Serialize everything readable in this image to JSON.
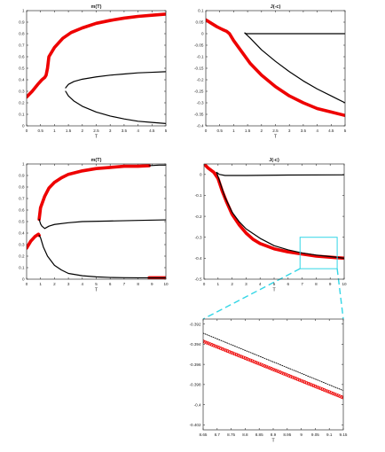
{
  "chart_data": [
    {
      "type": "line",
      "title": "m(T)",
      "xlabel": "T",
      "ylabel": "",
      "xlim": [
        0,
        5
      ],
      "ylim": [
        0,
        1
      ],
      "xticks": [
        "0",
        "0.5",
        "1",
        "1.5",
        "2",
        "2.5",
        "3",
        "3.5",
        "4",
        "4.5",
        "5"
      ],
      "yticks": [
        "0",
        "0.1",
        "0.2",
        "0.3",
        "0.4",
        "0.5",
        "0.6",
        "0.7",
        "0.8",
        "0.9",
        "1"
      ],
      "series": [
        {
          "color": "#ee0000",
          "style": "thick",
          "points": [
            [
              0,
              0.25
            ],
            [
              0.2,
              0.3
            ],
            [
              0.4,
              0.36
            ],
            [
              0.55,
              0.4
            ],
            [
              0.65,
              0.42
            ],
            [
              0.7,
              0.44
            ],
            [
              0.75,
              0.5
            ],
            [
              0.8,
              0.6
            ],
            [
              1.0,
              0.68
            ],
            [
              1.3,
              0.76
            ],
            [
              1.6,
              0.81
            ],
            [
              2.0,
              0.85
            ],
            [
              2.5,
              0.89
            ],
            [
              3.0,
              0.915
            ],
            [
              3.5,
              0.935
            ],
            [
              4.0,
              0.95
            ],
            [
              4.5,
              0.96
            ],
            [
              5.0,
              0.97
            ]
          ]
        },
        {
          "color": "#000000",
          "style": "thin",
          "points": [
            [
              1.4,
              0.33
            ],
            [
              1.5,
              0.36
            ],
            [
              1.7,
              0.385
            ],
            [
              2.0,
              0.405
            ],
            [
              2.5,
              0.425
            ],
            [
              3.0,
              0.44
            ],
            [
              3.5,
              0.45
            ],
            [
              4.0,
              0.46
            ],
            [
              4.5,
              0.465
            ],
            [
              5.0,
              0.47
            ]
          ]
        },
        {
          "color": "#000000",
          "style": "thin",
          "points": [
            [
              1.4,
              0.3
            ],
            [
              1.5,
              0.26
            ],
            [
              1.7,
              0.215
            ],
            [
              2.0,
              0.17
            ],
            [
              2.5,
              0.12
            ],
            [
              3.0,
              0.085
            ],
            [
              3.5,
              0.06
            ],
            [
              4.0,
              0.04
            ],
            [
              4.5,
              0.03
            ],
            [
              5.0,
              0.02
            ]
          ]
        }
      ]
    },
    {
      "type": "line",
      "title": "J(-c)",
      "xlabel": "T",
      "ylabel": "",
      "xlim": [
        0,
        5
      ],
      "ylim": [
        -0.4,
        0.1
      ],
      "xticks": [
        "0",
        "0.5",
        "1",
        "1.5",
        "2",
        "2.5",
        "3",
        "3.5",
        "4",
        "4.5",
        "5"
      ],
      "yticks": [
        "-0.4",
        "-0.35",
        "-0.3",
        "-0.25",
        "-0.2",
        "-0.15",
        "-0.1",
        "-0.05",
        "0",
        "0.05",
        "0.1"
      ],
      "series": [
        {
          "color": "#ee0000",
          "style": "thick",
          "points": [
            [
              0,
              0.06
            ],
            [
              0.2,
              0.045
            ],
            [
              0.4,
              0.03
            ],
            [
              0.6,
              0.018
            ],
            [
              0.75,
              0.01
            ],
            [
              0.85,
              0.0
            ],
            [
              1.0,
              -0.03
            ],
            [
              1.3,
              -0.08
            ],
            [
              1.6,
              -0.13
            ],
            [
              2.0,
              -0.18
            ],
            [
              2.5,
              -0.23
            ],
            [
              3.0,
              -0.27
            ],
            [
              3.5,
              -0.3
            ],
            [
              4.0,
              -0.325
            ],
            [
              4.5,
              -0.34
            ],
            [
              5.0,
              -0.355
            ]
          ]
        },
        {
          "color": "#000000",
          "style": "thin",
          "points": [
            [
              1.4,
              0.003
            ],
            [
              1.45,
              0.0
            ],
            [
              2.0,
              0.0
            ],
            [
              3.0,
              0.0
            ],
            [
              4.0,
              0.0
            ],
            [
              5.0,
              0.0
            ]
          ]
        },
        {
          "color": "#000000",
          "style": "thin",
          "points": [
            [
              1.4,
              0.003
            ],
            [
              1.6,
              -0.02
            ],
            [
              2.0,
              -0.07
            ],
            [
              2.5,
              -0.12
            ],
            [
              3.0,
              -0.165
            ],
            [
              3.5,
              -0.205
            ],
            [
              4.0,
              -0.24
            ],
            [
              4.5,
              -0.27
            ],
            [
              5.0,
              -0.3
            ]
          ]
        }
      ]
    },
    {
      "type": "line",
      "title": "m(T)",
      "xlabel": "T",
      "ylabel": "",
      "xlim": [
        0,
        10
      ],
      "ylim": [
        0,
        1
      ],
      "xticks": [
        "0",
        "1",
        "2",
        "3",
        "4",
        "5",
        "6",
        "7",
        "8",
        "9",
        "10"
      ],
      "yticks": [
        "0",
        "0.1",
        "0.2",
        "0.3",
        "0.4",
        "0.5",
        "0.6",
        "0.7",
        "0.8",
        "0.9",
        "1"
      ],
      "series": [
        {
          "color": "#ee0000",
          "style": "thick",
          "points": [
            [
              0,
              0.27
            ],
            [
              0.3,
              0.33
            ],
            [
              0.6,
              0.37
            ],
            [
              0.85,
              0.39
            ],
            [
              0.9,
              0.38
            ]
          ]
        },
        {
          "color": "#ee0000",
          "style": "thick",
          "points": [
            [
              0.9,
              0.52
            ],
            [
              1.0,
              0.62
            ],
            [
              1.3,
              0.72
            ],
            [
              1.6,
              0.79
            ],
            [
              2.0,
              0.84
            ],
            [
              2.5,
              0.88
            ],
            [
              3.0,
              0.91
            ],
            [
              4.0,
              0.94
            ],
            [
              5.0,
              0.96
            ],
            [
              6.0,
              0.97
            ],
            [
              7.0,
              0.98
            ],
            [
              8.0,
              0.98
            ],
            [
              8.8,
              0.985
            ]
          ]
        },
        {
          "color": "#ee0000",
          "style": "thick",
          "points": [
            [
              8.8,
              0.012
            ],
            [
              9.2,
              0.012
            ],
            [
              9.6,
              0.012
            ],
            [
              10.0,
              0.012
            ]
          ]
        },
        {
          "color": "#000000",
          "style": "thin",
          "points": [
            [
              0.9,
              0.38
            ],
            [
              1.0,
              0.36
            ],
            [
              1.2,
              0.28
            ],
            [
              1.5,
              0.2
            ],
            [
              2.0,
              0.12
            ],
            [
              2.5,
              0.08
            ],
            [
              3.0,
              0.05
            ],
            [
              4.0,
              0.03
            ],
            [
              5.0,
              0.02
            ],
            [
              6.0,
              0.015
            ],
            [
              7.0,
              0.013
            ],
            [
              8.0,
              0.012
            ],
            [
              10.0,
              0.012
            ]
          ]
        },
        {
          "color": "#000000",
          "style": "thin",
          "points": [
            [
              0.9,
              0.52
            ],
            [
              1.0,
              0.48
            ],
            [
              1.1,
              0.46
            ],
            [
              1.3,
              0.44
            ],
            [
              1.6,
              0.46
            ],
            [
              2.0,
              0.475
            ],
            [
              3.0,
              0.49
            ],
            [
              4.0,
              0.5
            ],
            [
              6.0,
              0.505
            ],
            [
              8.0,
              0.51
            ],
            [
              10.0,
              0.515
            ]
          ]
        },
        {
          "color": "#000000",
          "style": "thin",
          "points": [
            [
              8.8,
              0.985
            ],
            [
              9.5,
              0.99
            ],
            [
              10.0,
              0.99
            ]
          ]
        }
      ]
    },
    {
      "type": "line",
      "title": "J(-c)",
      "xlabel": "T",
      "ylabel": "",
      "xlim": [
        0,
        10
      ],
      "ylim": [
        -0.5,
        0.05
      ],
      "xticks": [
        "0",
        "1",
        "2",
        "3",
        "4",
        "5",
        "6",
        "7",
        "8",
        "9",
        "10"
      ],
      "yticks": [
        "-0.5",
        "-0.4",
        "-0.3",
        "-0.2",
        "-0.1",
        "0"
      ],
      "series": [
        {
          "color": "#ee0000",
          "style": "thick",
          "points": [
            [
              0,
              0.05
            ],
            [
              0.3,
              0.03
            ],
            [
              0.7,
              0.01
            ],
            [
              1.0,
              -0.02
            ],
            [
              1.3,
              -0.08
            ],
            [
              1.6,
              -0.13
            ],
            [
              2.0,
              -0.19
            ],
            [
              2.5,
              -0.24
            ],
            [
              3.0,
              -0.28
            ],
            [
              3.5,
              -0.31
            ],
            [
              4.0,
              -0.33
            ],
            [
              5.0,
              -0.355
            ],
            [
              6.0,
              -0.37
            ],
            [
              7.0,
              -0.38
            ],
            [
              8.0,
              -0.39
            ],
            [
              9.0,
              -0.395
            ],
            [
              10.0,
              -0.4
            ]
          ]
        },
        {
          "color": "#000000",
          "style": "thin",
          "points": [
            [
              0.9,
              0.01
            ],
            [
              1.1,
              0.0
            ],
            [
              1.5,
              -0.005
            ],
            [
              3.0,
              -0.005
            ],
            [
              6.0,
              -0.003
            ],
            [
              10.0,
              -0.002
            ]
          ]
        },
        {
          "color": "#000000",
          "style": "thin",
          "points": [
            [
              0.9,
              0.01
            ],
            [
              1.2,
              -0.05
            ],
            [
              1.5,
              -0.11
            ],
            [
              2.0,
              -0.18
            ],
            [
              2.5,
              -0.225
            ],
            [
              3.0,
              -0.26
            ],
            [
              4.0,
              -0.305
            ],
            [
              5.0,
              -0.34
            ],
            [
              6.0,
              -0.36
            ],
            [
              7.0,
              -0.375
            ],
            [
              8.0,
              -0.385
            ],
            [
              9.0,
              -0.392
            ],
            [
              10.0,
              -0.4
            ]
          ]
        }
      ],
      "inset_box": {
        "x": [
          6.85,
          9.5
        ],
        "y": [
          -0.45,
          -0.3
        ],
        "color": "#33d6e6"
      }
    },
    {
      "type": "line",
      "title": "",
      "xlabel": "T",
      "ylabel": "",
      "xlim": [
        8.65,
        9.15
      ],
      "ylim": [
        -0.4025,
        -0.3915
      ],
      "xticks": [
        "8.65",
        "8.7",
        "8.75",
        "8.8",
        "8.85",
        "8.9",
        "8.95",
        "9",
        "9.05",
        "9.1",
        "9.15"
      ],
      "yticks": [
        "-0.392",
        "-0.394",
        "-0.396",
        "-0.398",
        "-0.4",
        "-0.402"
      ],
      "series": [
        {
          "color": "#ee0000",
          "style": "markers",
          "points": [
            [
              8.65,
              -0.3937
            ],
            [
              9.15,
              -0.3993
            ]
          ]
        },
        {
          "color": "#000000",
          "style": "dotted",
          "points": [
            [
              8.65,
              -0.3929
            ],
            [
              9.15,
              -0.3986
            ]
          ]
        }
      ]
    }
  ]
}
